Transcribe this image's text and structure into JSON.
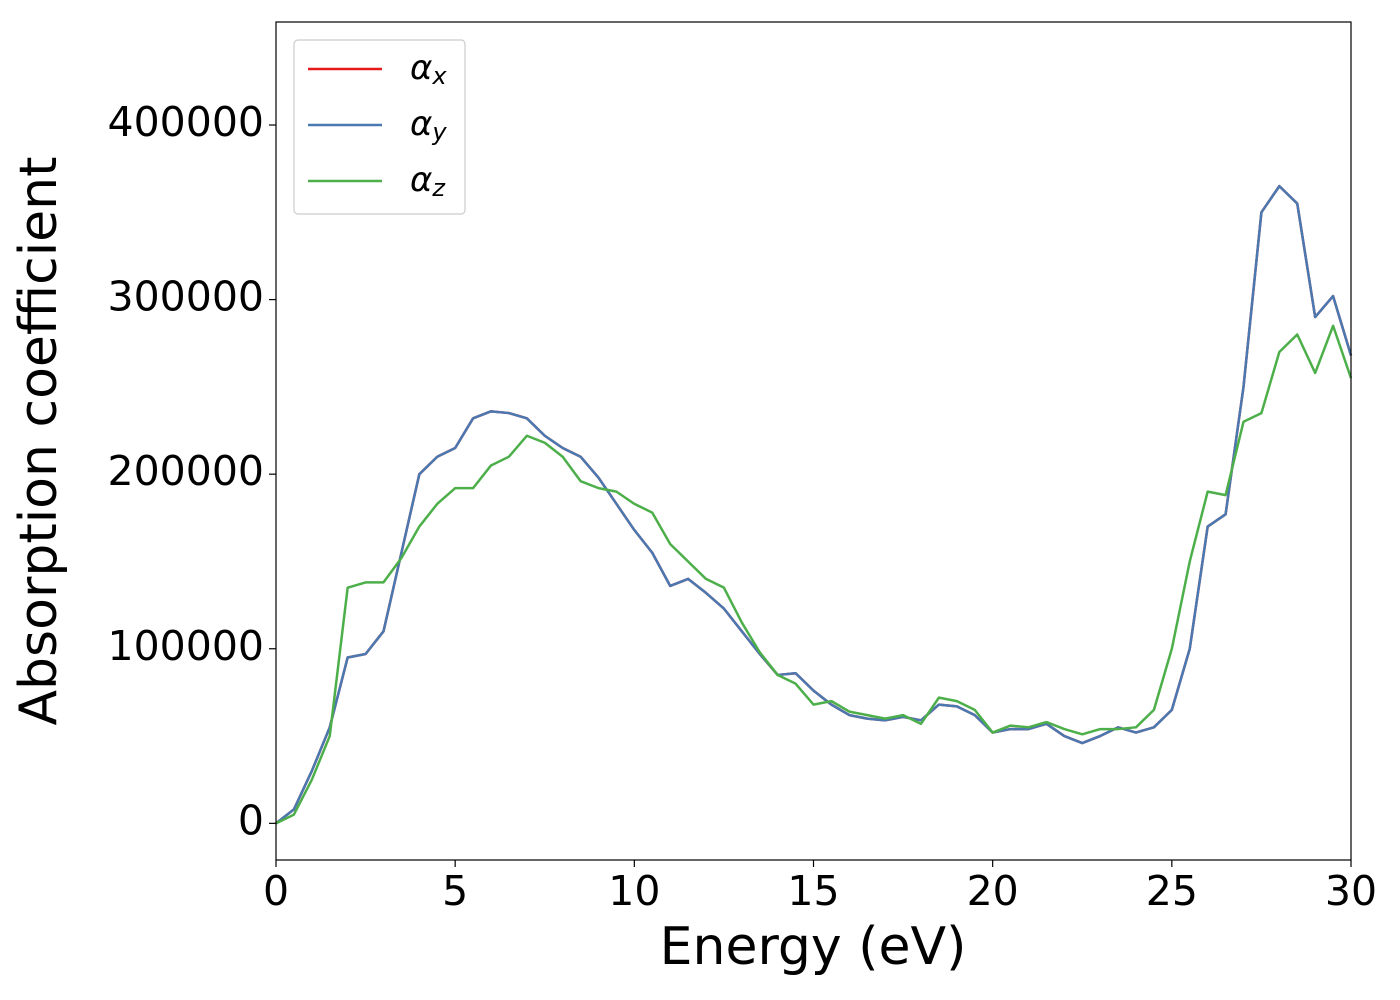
{
  "chart_data": {
    "type": "line",
    "xlabel": "Energy (eV)",
    "ylabel": "Absorption coefficient",
    "x": [
      0,
      0.5,
      1,
      1.5,
      2,
      2.5,
      3,
      3.5,
      4,
      4.5,
      5,
      5.5,
      6,
      6.5,
      7,
      7.5,
      8,
      8.5,
      9,
      9.5,
      10,
      10.5,
      11,
      11.5,
      12,
      12.5,
      13,
      13.5,
      14,
      14.5,
      15,
      15.5,
      16,
      16.5,
      17,
      17.5,
      18,
      18.5,
      19,
      19.5,
      20,
      20.5,
      21,
      21.5,
      22,
      22.5,
      23,
      23.5,
      24,
      24.5,
      25,
      25.5,
      26,
      26.5,
      27,
      27.5,
      28,
      28.5,
      29,
      29.5,
      30
    ],
    "series": [
      {
        "name": "αx",
        "color": "#e41a1c",
        "values": [
          0,
          8000,
          30000,
          55000,
          95000,
          97000,
          110000,
          155000,
          200000,
          210000,
          215000,
          232000,
          236000,
          235000,
          232000,
          222000,
          215000,
          210000,
          198000,
          183000,
          168000,
          155000,
          136000,
          140000,
          132000,
          123000,
          110000,
          97000,
          85000,
          86000,
          76000,
          68000,
          62000,
          60000,
          59000,
          61000,
          59000,
          68000,
          67000,
          62000,
          52000,
          54000,
          54000,
          57000,
          50000,
          46000,
          50000,
          55000,
          52000,
          55000,
          65000,
          100000,
          170000,
          177000,
          250000,
          350000,
          365000,
          355000,
          290000,
          302000,
          268000
        ]
      },
      {
        "name": "αy",
        "color": "#4a78b0",
        "values": [
          0,
          8000,
          30000,
          55000,
          95000,
          97000,
          110000,
          155000,
          200000,
          210000,
          215000,
          232000,
          236000,
          235000,
          232000,
          222000,
          215000,
          210000,
          198000,
          183000,
          168000,
          155000,
          136000,
          140000,
          132000,
          123000,
          110000,
          97000,
          85000,
          86000,
          76000,
          68000,
          62000,
          60000,
          59000,
          61000,
          59000,
          68000,
          67000,
          62000,
          52000,
          54000,
          54000,
          57000,
          50000,
          46000,
          50000,
          55000,
          52000,
          55000,
          65000,
          100000,
          170000,
          177000,
          250000,
          350000,
          365000,
          355000,
          290000,
          302000,
          268000
        ]
      },
      {
        "name": "αz",
        "color": "#4daf4a",
        "values": [
          0,
          5000,
          25000,
          50000,
          135000,
          138000,
          138000,
          152000,
          170000,
          183000,
          192000,
          192000,
          205000,
          210000,
          222000,
          218000,
          210000,
          196000,
          192000,
          190000,
          183000,
          178000,
          160000,
          150000,
          140000,
          135000,
          115000,
          98000,
          85000,
          80000,
          68000,
          70000,
          64000,
          62000,
          60000,
          62000,
          57000,
          72000,
          70000,
          65000,
          52000,
          56000,
          55000,
          58000,
          54000,
          51000,
          54000,
          54000,
          55000,
          65000,
          100000,
          150000,
          190000,
          188000,
          230000,
          235000,
          270000,
          280000,
          258000,
          285000,
          255000
        ]
      }
    ],
    "xlim": [
      0,
      30
    ],
    "xticks": [
      0,
      5,
      10,
      15,
      20,
      25,
      30
    ],
    "ylim": [
      -21000,
      459000
    ],
    "yticks": [
      0,
      100000,
      200000,
      300000,
      400000
    ],
    "legend": "upper left"
  }
}
